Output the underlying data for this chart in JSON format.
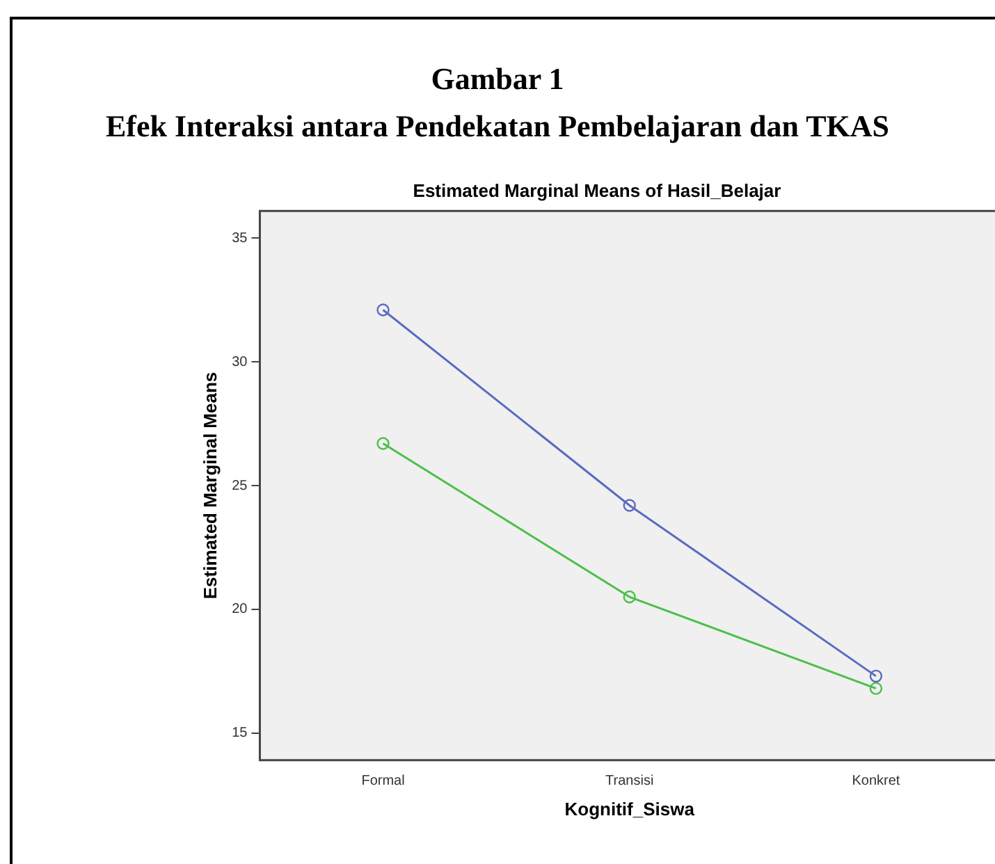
{
  "chart_data": {
    "type": "line",
    "title": "Gambar 1",
    "subtitle": "Efek Interaksi antara Pendekatan Pembelajaran dan TKAS",
    "annotations": [
      "Estimated Marginal Means of Hasil_Belajar"
    ],
    "xlabel": "Kognitif_Siswa",
    "ylabel": "Estimated Marginal Means",
    "categories": [
      "Formal",
      "Transisi",
      "Konkret"
    ],
    "series": [
      {
        "color": "#5a6bc0",
        "values": [
          32.1,
          24.2,
          17.3
        ]
      },
      {
        "color": "#4cbf4c",
        "values": [
          26.7,
          20.5,
          16.8
        ]
      }
    ],
    "ylim": [
      13.9,
      36.1
    ],
    "yticks": [
      15,
      20,
      25,
      30,
      35
    ],
    "grid": false,
    "legend": false,
    "marker": "circle",
    "line_style": "solid"
  }
}
